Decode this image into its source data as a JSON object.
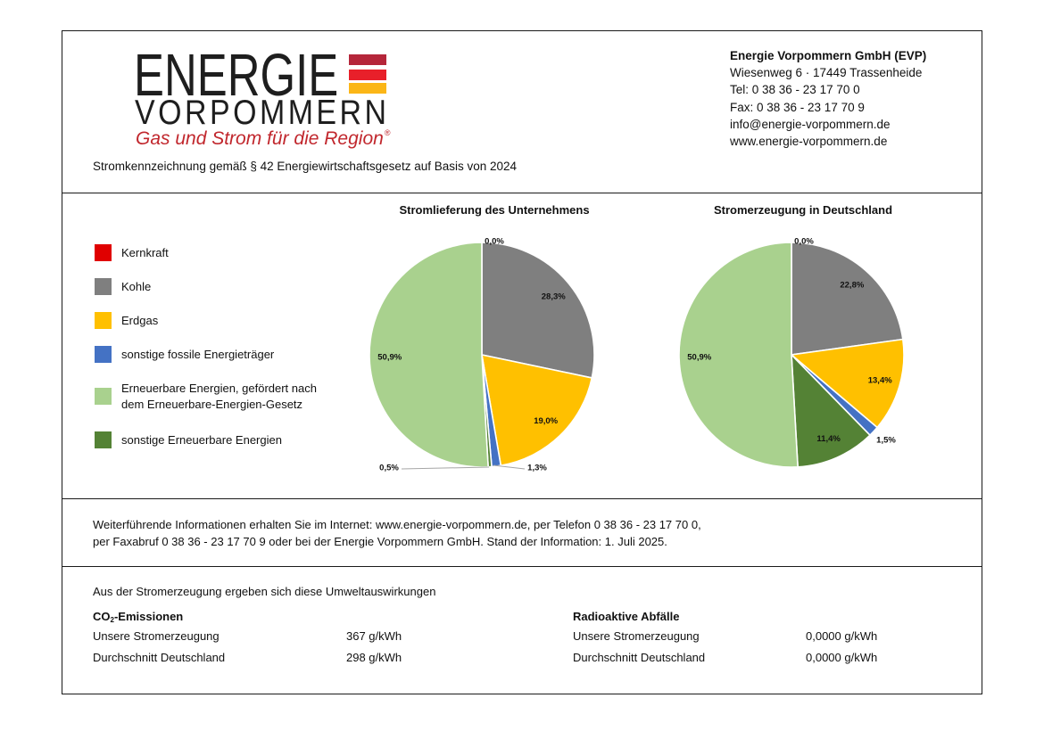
{
  "logo": {
    "line1": "ENERGIE",
    "line2": "VORPOMMERN",
    "tagline": "Gas und Strom für die Region",
    "registered_mark": "®",
    "stripe_colors": [
      "#b5263a",
      "#e8202a",
      "#fbb617"
    ],
    "tagline_color": "#c1272d"
  },
  "company": {
    "name": "Energie Vorpommern GmbH (EVP)",
    "address": "Wiesenweg 6 · 17449 Trassenheide",
    "tel": "Tel: 0 38 36 -  23 17 70 0",
    "fax": "Fax: 0 38 36 - 23 17 70 9",
    "email": "info@energie-vorpommern.de",
    "web": "www.energie-vorpommern.de"
  },
  "subtitle": "Stromkennzeichnung gemäß § 42 Energiewirtschaftsgesetz auf Basis von 2024",
  "legend": [
    {
      "label": "Kernkraft",
      "color": "#e00000"
    },
    {
      "label": "Kohle",
      "color": "#7f7f7f"
    },
    {
      "label": "Erdgas",
      "color": "#ffc000"
    },
    {
      "label": "sonstige fossile Energieträger",
      "color": "#4472c4"
    },
    {
      "label_line1": "Erneuerbare Energien, gefördert nach",
      "label_line2": "dem Erneuerbare-Energien-Gesetz",
      "color": "#a9d18e"
    },
    {
      "label": "sonstige Erneuerbare Energien",
      "color": "#548235"
    }
  ],
  "chart_data": [
    {
      "type": "pie",
      "title": "Stromlieferung des Unternehmens",
      "categories": [
        "Kernkraft",
        "Kohle",
        "Erdgas",
        "sonstige fossile Energieträger",
        "sonstige Erneuerbare Energien",
        "Erneuerbare Energien, gefördert nach dem EEG"
      ],
      "values": [
        0.0,
        28.3,
        19.0,
        1.3,
        0.5,
        50.9
      ],
      "labels": [
        "0,0%",
        "28,3%",
        "19,0%",
        "1,3%",
        "0,5%",
        "50,9%"
      ],
      "colors": [
        "#e00000",
        "#7f7f7f",
        "#ffc000",
        "#4472c4",
        "#548235",
        "#a9d18e"
      ],
      "unit": "%",
      "start": "top",
      "direction": "clockwise"
    },
    {
      "type": "pie",
      "title": "Stromerzeugung in Deutschland",
      "categories": [
        "Kernkraft",
        "Kohle",
        "Erdgas",
        "sonstige fossile Energieträger",
        "sonstige Erneuerbare Energien",
        "Erneuerbare Energien, gefördert nach dem EEG"
      ],
      "values": [
        0.0,
        22.8,
        13.4,
        1.5,
        11.4,
        50.9
      ],
      "labels": [
        "0,0%",
        "22,8%",
        "13,4%",
        "1,5%",
        "11,4%",
        "50,9%"
      ],
      "colors": [
        "#e00000",
        "#7f7f7f",
        "#ffc000",
        "#4472c4",
        "#548235",
        "#a9d18e"
      ],
      "unit": "%",
      "start": "top",
      "direction": "clockwise"
    }
  ],
  "info": {
    "line1": "Weiterführende Informationen erhalten Sie im Internet: www.energie-vorpommern.de, per Telefon 0 38 36 - 23 17 70 0,",
    "line2": "per Faxabruf 0 38 36 - 23 17 70 9 oder bei der Energie Vorpommern GmbH. Stand der Information: 1. Juli 2025."
  },
  "impact": {
    "intro": "Aus der Stromerzeugung ergeben sich diese Umweltauswirkungen",
    "co2": {
      "title_prefix": "CO",
      "title_sub": "2",
      "title_suffix": "-Emissionen",
      "rows": [
        {
          "label": "Unsere Stromerzeugung",
          "value": "367 g/kWh"
        },
        {
          "label": "Durchschnitt Deutschland",
          "value": "298 g/kWh"
        }
      ]
    },
    "radioactive": {
      "title": "Radioaktive Abfälle",
      "rows": [
        {
          "label": "Unsere Stromerzeugung",
          "value": "0,0000 g/kWh"
        },
        {
          "label": "Durchschnitt Deutschland",
          "value": "0,0000 g/kWh"
        }
      ]
    }
  }
}
